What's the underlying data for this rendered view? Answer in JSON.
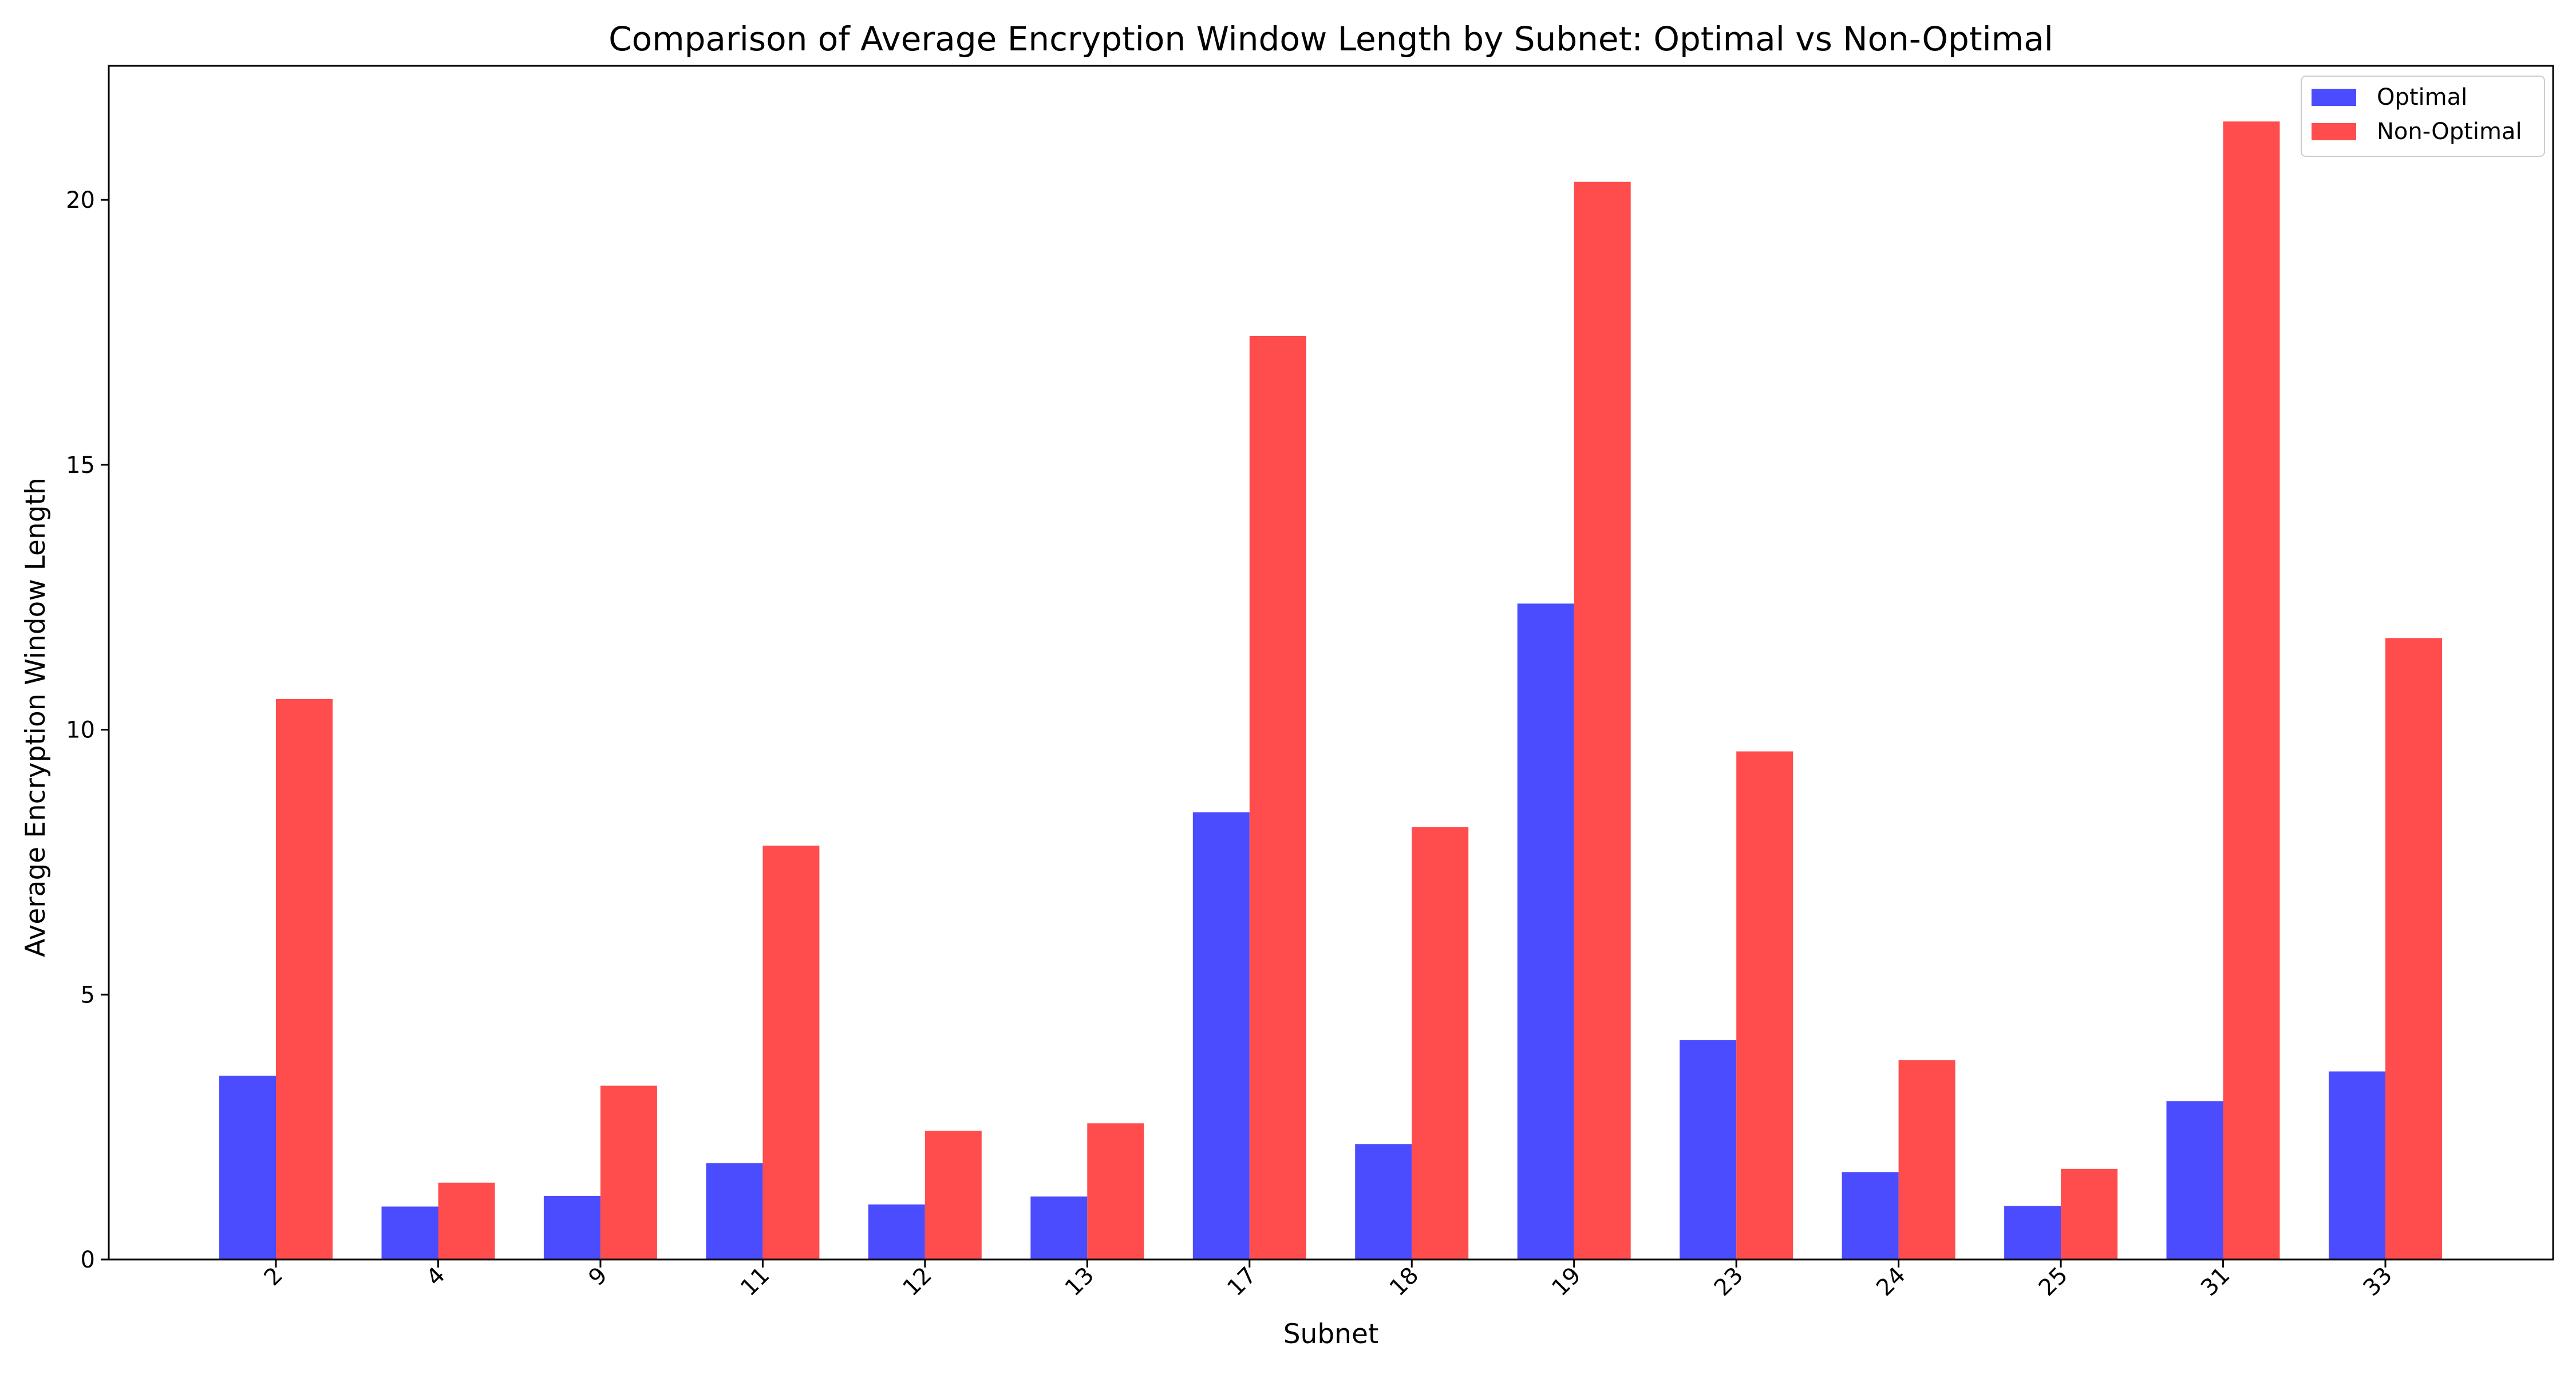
{
  "chart_data": {
    "type": "bar",
    "title": "Comparison of Average Encryption Window Length by Subnet: Optimal vs Non-Optimal",
    "xlabel": "Subnet",
    "ylabel": "Average Encryption Window Length",
    "categories": [
      "2",
      "4",
      "9",
      "11",
      "12",
      "13",
      "17",
      "18",
      "19",
      "23",
      "24",
      "25",
      "31",
      "33"
    ],
    "series": [
      {
        "name": "Optimal",
        "color": "#4c4cff",
        "values": [
          3.47,
          1.0,
          1.2,
          1.82,
          1.04,
          1.19,
          8.44,
          2.18,
          12.38,
          4.14,
          1.65,
          1.01,
          2.99,
          3.55
        ]
      },
      {
        "name": "Non-Optimal",
        "color": "#ff4c4c",
        "values": [
          10.58,
          1.45,
          3.28,
          7.81,
          2.43,
          2.57,
          17.43,
          8.16,
          20.34,
          9.59,
          3.76,
          1.71,
          21.48,
          11.73
        ]
      }
    ],
    "ylim": [
      0,
      22.53
    ],
    "yticks": [
      "0",
      "5",
      "10",
      "15",
      "20"
    ],
    "ytick_values": [
      0,
      5,
      10,
      15,
      20
    ],
    "grid": false,
    "legend_position": "top-right"
  }
}
